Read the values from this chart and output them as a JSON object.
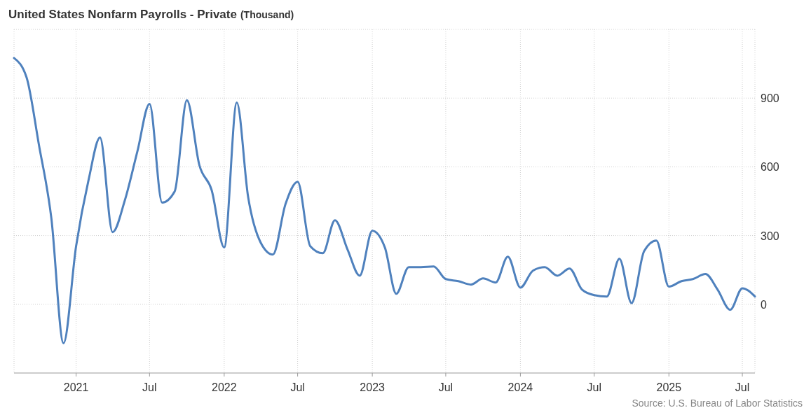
{
  "chart_data": {
    "type": "line",
    "title": "United States Nonfarm Payrolls - Private",
    "subtitle": "(Thousand)",
    "x": [
      "2020-08",
      "2020-09",
      "2020-10",
      "2020-11",
      "2020-12",
      "2021-01",
      "2021-02",
      "2021-03",
      "2021-04",
      "2021-05",
      "2021-06",
      "2021-07",
      "2021-08",
      "2021-09",
      "2021-10",
      "2021-11",
      "2021-12",
      "2022-01",
      "2022-02",
      "2022-03",
      "2022-04",
      "2022-05",
      "2022-06",
      "2022-07",
      "2022-08",
      "2022-09",
      "2022-10",
      "2022-11",
      "2022-12",
      "2023-01",
      "2023-02",
      "2023-03",
      "2023-04",
      "2023-05",
      "2023-06",
      "2023-07",
      "2023-08",
      "2023-09",
      "2023-10",
      "2023-11",
      "2023-12",
      "2024-01",
      "2024-02",
      "2024-03",
      "2024-04",
      "2024-05",
      "2024-06",
      "2024-07",
      "2024-08",
      "2024-09",
      "2024-10",
      "2024-11",
      "2024-12",
      "2025-01",
      "2025-02",
      "2025-03",
      "2025-04",
      "2025-05",
      "2025-06",
      "2025-07",
      "2025-08"
    ],
    "series": [
      {
        "color": "#4f81bd",
        "values": [
          1075,
          990,
          700,
          376,
          -170,
          254,
          545,
          728,
          315,
          453,
          667,
          875,
          444,
          493,
          891,
          606,
          499,
          248,
          881,
          468,
          269,
          217,
          437,
          535,
          254,
          223,
          367,
          239,
          125,
          321,
          248,
          46,
          162,
          162,
          165,
          110,
          101,
          86,
          113,
          95,
          208,
          73,
          147,
          162,
          125,
          156,
          64,
          40,
          34,
          199,
          5,
          232,
          278,
          77,
          101,
          110,
          132,
          64,
          -24,
          70,
          34
        ]
      }
    ],
    "xlim": [
      "2020-08",
      "2025-08"
    ],
    "xticks": [
      {
        "value": "2021-01",
        "label": "2021"
      },
      {
        "value": "2021-07",
        "label": "Jul"
      },
      {
        "value": "2022-01",
        "label": "2022"
      },
      {
        "value": "2022-07",
        "label": "Jul"
      },
      {
        "value": "2023-01",
        "label": "2023"
      },
      {
        "value": "2023-07",
        "label": "Jul"
      },
      {
        "value": "2024-01",
        "label": "2024"
      },
      {
        "value": "2024-07",
        "label": "Jul"
      },
      {
        "value": "2025-01",
        "label": "2025"
      },
      {
        "value": "2025-07",
        "label": "Jul"
      }
    ],
    "ylim": [
      -300,
      1200
    ],
    "yticks": [
      0,
      300,
      600,
      900
    ],
    "grid": true,
    "marker": "none",
    "line_style": "solid",
    "annotations": [
      "Source: U.S. Bureau of Labor Statistics"
    ]
  }
}
